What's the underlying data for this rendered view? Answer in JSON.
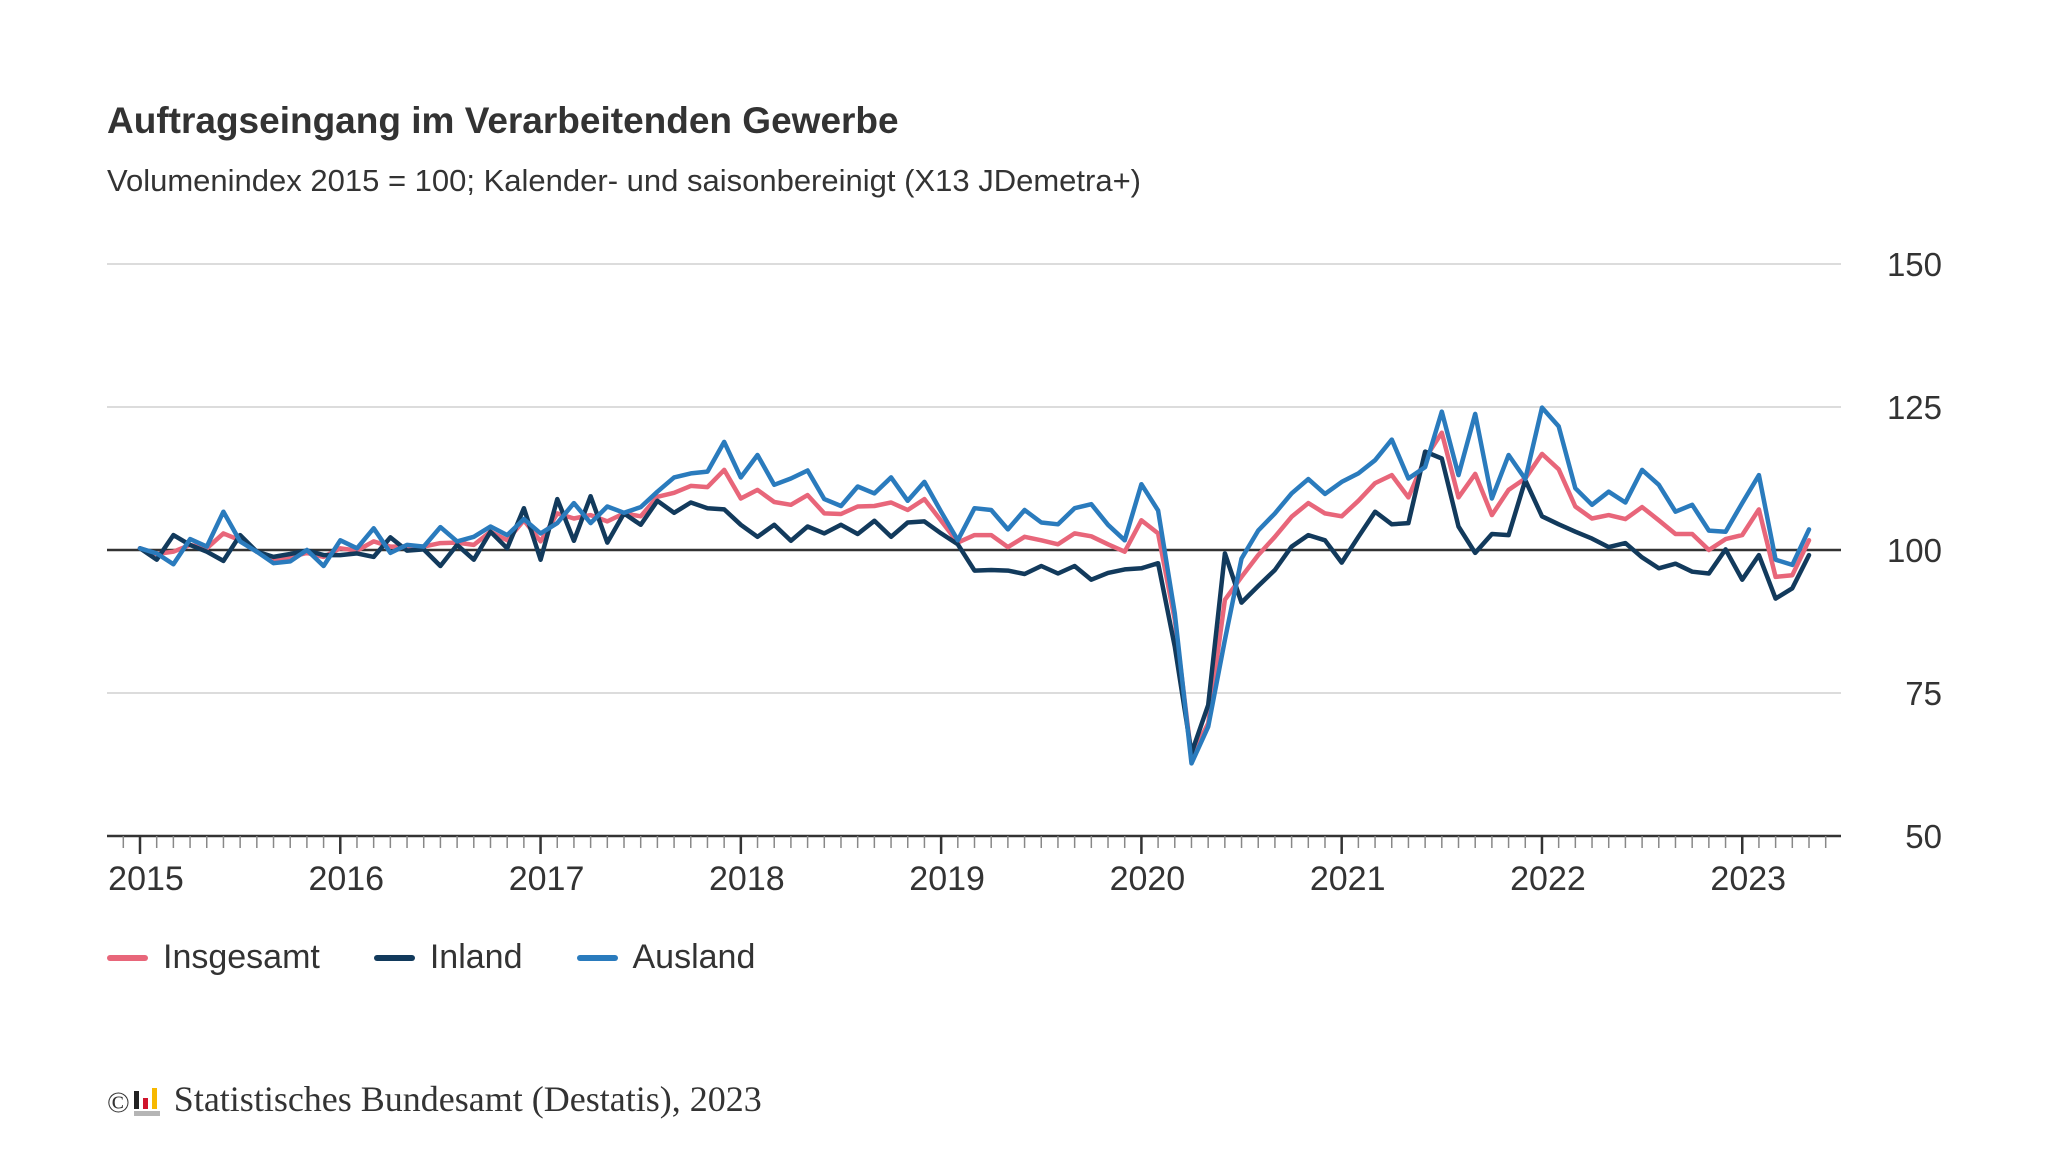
{
  "title": "Auftragseingang im Verarbeitenden Gewerbe",
  "subtitle": "Volumenindex 2015 = 100; Kalender- und saisonbereinigt (X13 JDemetra+)",
  "footer": {
    "copyright_symbol": "©",
    "logo": "Destatis",
    "text": "Statistisches Bundesamt (Destatis), 2023"
  },
  "chart_data": {
    "type": "line",
    "title": "Auftragseingang im Verarbeitenden Gewerbe",
    "subtitle": "Volumenindex 2015 = 100; Kalender- und saisonbereinigt (X13 JDemetra+)",
    "x_start": "2015-01",
    "x_end": "2023-05",
    "x_frequency": "monthly",
    "x_tick_labels": [
      "2015",
      "2016",
      "2017",
      "2018",
      "2019",
      "2020",
      "2021",
      "2022",
      "2023"
    ],
    "y_tick_labels": [
      "150",
      "125",
      "100",
      "75",
      "50"
    ],
    "ylim": [
      50,
      150
    ],
    "y_axis_position": "right",
    "reference_line": 100,
    "grid": true,
    "legend_position": "bottom-left",
    "series": [
      {
        "name": "Insgesamt",
        "color": "#e8667a",
        "values": [
          100.3,
          99.3,
          99.7,
          100.9,
          100.3,
          102.9,
          101.7,
          99.7,
          98.3,
          98.8,
          99.5,
          98.8,
          100.3,
          99.9,
          101.5,
          100.6,
          100.6,
          100.6,
          101.2,
          101.3,
          100.9,
          103.2,
          101.7,
          105.2,
          101.5,
          106.4,
          105.5,
          106.1,
          105.0,
          106.4,
          105.9,
          109.3,
          110.0,
          111.2,
          111.0,
          114.0,
          109.0,
          110.5,
          108.4,
          107.9,
          109.6,
          106.4,
          106.3,
          107.6,
          107.7,
          108.3,
          107.0,
          108.9,
          105.1,
          101.3,
          102.6,
          102.6,
          100.5,
          102.3,
          101.7,
          101.0,
          102.9,
          102.4,
          101.0,
          99.7,
          105.2,
          102.9,
          87.8,
          63.9,
          69.7,
          91.3,
          95.3,
          99.1,
          102.3,
          105.8,
          108.2,
          106.4,
          105.9,
          108.6,
          111.7,
          113.1,
          109.2,
          116.0,
          120.5,
          109.2,
          113.3,
          106.1,
          110.5,
          112.5,
          116.8,
          114.1,
          107.6,
          105.5,
          106.1,
          105.4,
          107.5,
          105.2,
          102.8,
          102.8,
          100.0,
          101.9,
          102.6,
          107.1,
          95.3,
          95.6,
          101.7
        ]
      },
      {
        "name": "Inland",
        "color": "#123a5c",
        "values": [
          100.3,
          98.3,
          102.6,
          100.9,
          99.7,
          98.1,
          102.6,
          99.7,
          98.8,
          99.3,
          99.9,
          99.1,
          99.1,
          99.4,
          98.8,
          102.2,
          99.9,
          100.1,
          97.2,
          100.9,
          98.3,
          103.2,
          100.3,
          107.3,
          98.3,
          108.9,
          101.6,
          109.4,
          101.3,
          106.4,
          104.4,
          108.6,
          106.5,
          108.3,
          107.3,
          107.1,
          104.4,
          102.3,
          104.4,
          101.6,
          104.1,
          102.9,
          104.4,
          102.8,
          105.1,
          102.3,
          104.8,
          105.0,
          102.9,
          101.0,
          96.4,
          96.5,
          96.4,
          95.8,
          97.2,
          95.9,
          97.2,
          94.8,
          96.0,
          96.6,
          96.8,
          97.7,
          83.1,
          64.5,
          72.9,
          99.4,
          90.8,
          93.7,
          96.5,
          100.6,
          102.6,
          101.7,
          97.8,
          102.3,
          106.7,
          104.5,
          104.7,
          117.2,
          116.0,
          104.1,
          99.5,
          102.8,
          102.6,
          112.2,
          105.9,
          104.5,
          103.2,
          102.0,
          100.5,
          101.2,
          98.7,
          96.8,
          97.6,
          96.2,
          95.9,
          100.1,
          94.8,
          99.1,
          91.5,
          93.3,
          99.1
        ]
      },
      {
        "name": "Ausland",
        "color": "#2a7bbd",
        "values": [
          100.3,
          99.4,
          97.5,
          101.9,
          100.6,
          106.7,
          101.5,
          99.7,
          97.7,
          98.0,
          100.0,
          97.2,
          101.7,
          100.3,
          103.8,
          99.5,
          100.9,
          100.6,
          104.0,
          101.5,
          102.3,
          104.1,
          102.6,
          105.4,
          102.9,
          104.7,
          108.2,
          104.7,
          107.6,
          106.5,
          107.5,
          110.2,
          112.7,
          113.4,
          113.7,
          118.9,
          112.7,
          116.6,
          111.4,
          112.5,
          113.9,
          108.9,
          107.7,
          111.1,
          109.9,
          112.7,
          108.6,
          111.9,
          106.7,
          101.7,
          107.3,
          107.0,
          103.6,
          107.0,
          104.8,
          104.5,
          107.3,
          108.0,
          104.4,
          101.7,
          111.5,
          106.9,
          88.9,
          62.7,
          69.1,
          84.3,
          98.5,
          103.4,
          106.4,
          109.9,
          112.4,
          109.8,
          111.9,
          113.4,
          115.7,
          119.3,
          112.5,
          114.5,
          124.2,
          113.1,
          123.8,
          109.0,
          116.6,
          112.4,
          124.9,
          121.6,
          110.8,
          107.9,
          110.2,
          108.3,
          114.0,
          111.4,
          106.7,
          107.9,
          103.4,
          103.2,
          108.2,
          113.1,
          98.3,
          97.4,
          103.6
        ]
      }
    ]
  }
}
